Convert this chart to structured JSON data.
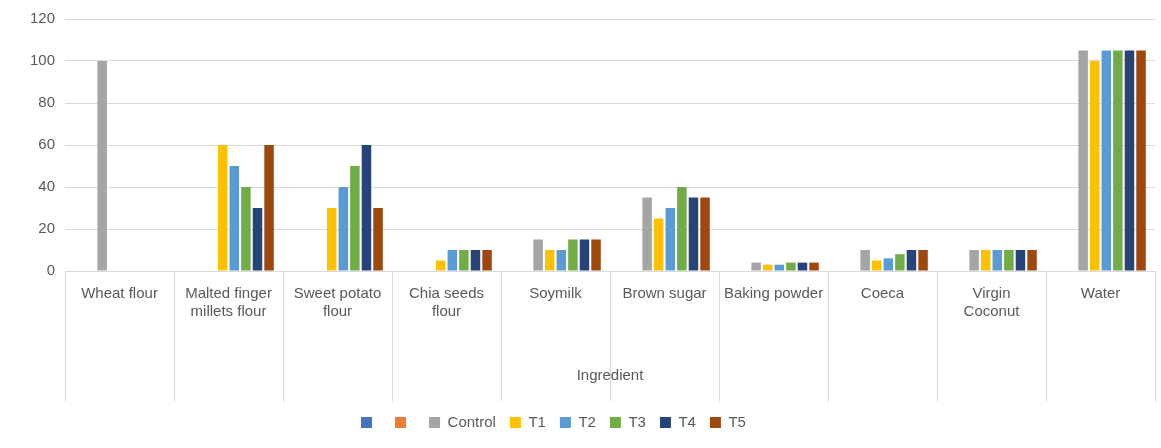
{
  "chart_data": {
    "type": "bar",
    "xlabel": "Ingredient",
    "categories": [
      "Wheat flour",
      "Malted finger millets flour",
      "Sweet potato flour",
      "Chia seeds flour",
      "Soymilk",
      "Brown sugar",
      "Baking powder",
      "Coeca",
      "Virgin Coconut",
      "Water"
    ],
    "series": [
      {
        "color": "#4472c4",
        "values": [
          null,
          null,
          null,
          null,
          null,
          null,
          null,
          null,
          null,
          null
        ]
      },
      {
        "color": "#ed7d31",
        "values": [
          null,
          null,
          null,
          null,
          null,
          null,
          null,
          null,
          null,
          null
        ]
      },
      {
        "name": "Control",
        "color": "#a5a5a5",
        "values": [
          100,
          null,
          null,
          null,
          15,
          35,
          4,
          10,
          10,
          105
        ]
      },
      {
        "name": "T1",
        "color": "#ffc000",
        "values": [
          null,
          60,
          30,
          5,
          10,
          25,
          3,
          5,
          10,
          100
        ]
      },
      {
        "name": "T2",
        "color": "#5b9bd5",
        "values": [
          null,
          50,
          40,
          10,
          10,
          30,
          3,
          6,
          10,
          105
        ]
      },
      {
        "name": "T3",
        "color": "#70ad47",
        "values": [
          null,
          40,
          50,
          10,
          15,
          40,
          4,
          8,
          10,
          105
        ]
      },
      {
        "name": "T4",
        "color": "#264478",
        "values": [
          null,
          30,
          60,
          10,
          15,
          35,
          4,
          10,
          10,
          105
        ]
      },
      {
        "name": "T5",
        "color": "#9e480e",
        "values": [
          null,
          60,
          30,
          10,
          15,
          35,
          4,
          10,
          10,
          105
        ]
      }
    ],
    "ylim": [
      0,
      120
    ],
    "yticks": [
      0,
      20,
      40,
      60,
      80,
      100,
      120
    ],
    "grid": "y",
    "legend": "bottom"
  }
}
